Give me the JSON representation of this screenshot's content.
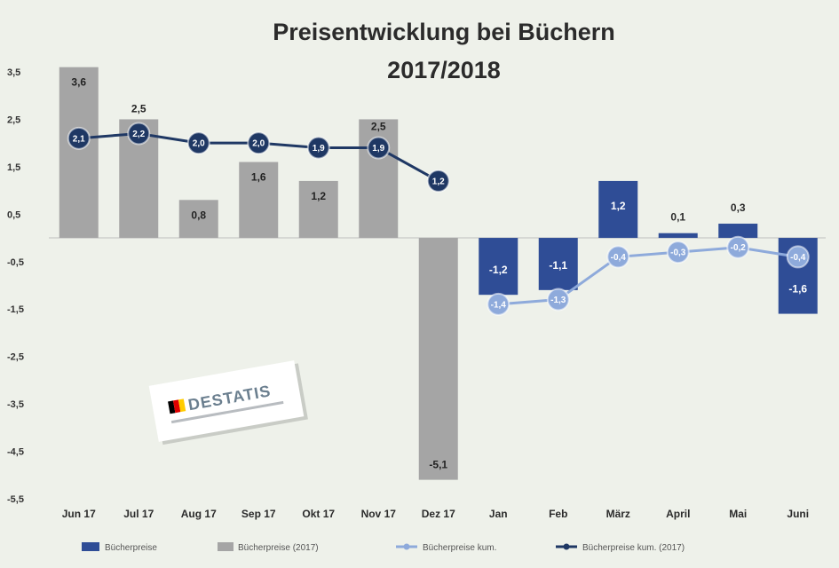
{
  "chart_data": {
    "type": "bar+line",
    "title": "Preisentwicklung bei Büchern",
    "subtitle": "2017/2018",
    "categories": [
      "Jun 17",
      "Jul 17",
      "Aug 17",
      "Sep 17",
      "Okt 17",
      "Nov 17",
      "Dez 17",
      "Jan",
      "Feb",
      "März",
      "April",
      "Mai",
      "Juni"
    ],
    "ylim": [
      -5.5,
      3.5
    ],
    "yticks": [
      3.5,
      2.5,
      1.5,
      0.5,
      -0.5,
      -1.5,
      -2.5,
      -3.5,
      -4.5,
      -5.5
    ],
    "ytick_labels": [
      "3,5",
      "2,5",
      "1,5",
      "0,5",
      "-0,5",
      "-1,5",
      "-2,5",
      "-3,5",
      "-4,5",
      "-5,5"
    ],
    "grid": false,
    "legend": "bottom",
    "series": [
      {
        "name": "Bücherpreise",
        "type": "bar",
        "color": "#2f4d96",
        "values": [
          null,
          null,
          null,
          null,
          null,
          null,
          null,
          -1.2,
          -1.1,
          1.2,
          0.1,
          0.3,
          -1.6
        ],
        "labels": [
          null,
          null,
          null,
          null,
          null,
          null,
          null,
          "-1,2",
          "-1,1",
          "1,2",
          "0,1",
          "0,3",
          "-1,6"
        ]
      },
      {
        "name": "Bücherpreise (2017)",
        "type": "bar",
        "color": "#a5a5a5",
        "values": [
          3.6,
          2.5,
          0.8,
          1.6,
          1.2,
          2.5,
          -5.1,
          null,
          null,
          null,
          null,
          null,
          null
        ],
        "labels": [
          "3,6",
          "2,5",
          "0,8",
          "1,6",
          "1,2",
          "2,5",
          "-5,1",
          null,
          null,
          null,
          null,
          null,
          null
        ]
      },
      {
        "name": "Bücherpreise kum.",
        "type": "line",
        "color": "#8eaadb",
        "values": [
          null,
          null,
          null,
          null,
          null,
          null,
          null,
          -1.4,
          -1.3,
          -0.4,
          -0.3,
          -0.2,
          -0.4
        ],
        "labels": [
          null,
          null,
          null,
          null,
          null,
          null,
          null,
          "-1,4",
          "-1,3",
          "-0,4",
          "-0,3",
          "-0,2",
          "-0,4"
        ]
      },
      {
        "name": "Bücherpreise kum. (2017)",
        "type": "line",
        "color": "#1f3864",
        "values": [
          2.1,
          2.2,
          2.0,
          2.0,
          1.9,
          1.9,
          1.2,
          null,
          null,
          null,
          null,
          null,
          null
        ],
        "labels": [
          "2,1",
          "2,2",
          "2,0",
          "2,0",
          "1,9",
          "1,9",
          "1,2",
          null,
          null,
          null,
          null,
          null,
          null
        ]
      }
    ]
  },
  "logo": {
    "text": "DESTATIS",
    "flag_colors": [
      "#000000",
      "#dd0000",
      "#ffcc00"
    ]
  }
}
